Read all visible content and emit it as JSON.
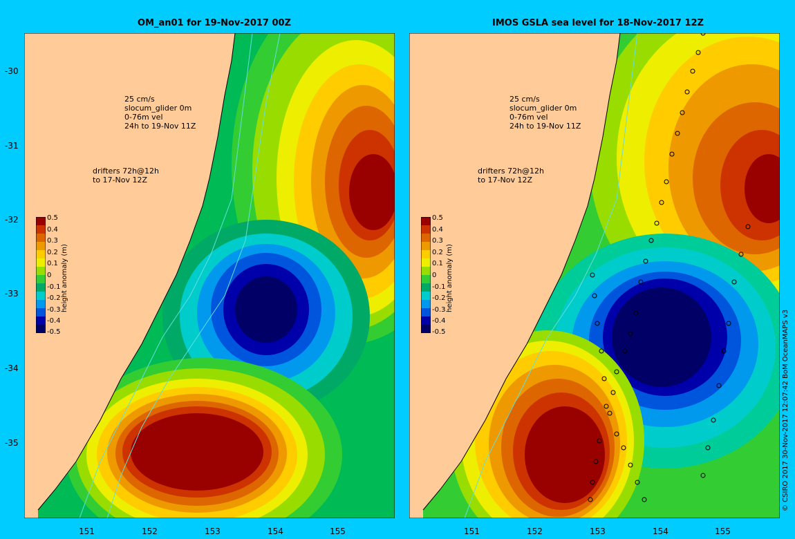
{
  "left_panel": {
    "title": "OM_an01 for 19-Nov-2017 00Z",
    "legend_vel_scale": "25 cm/s",
    "legend_glider": "slocum_glider 0m",
    "legend_vel_depth": "0-76m vel",
    "legend_vel_time": "24h to 19-Nov 11Z",
    "legend_drifters_1": "drifters 72h@12h",
    "legend_drifters_2": "to 17-Nov 12Z"
  },
  "right_panel": {
    "title": "IMOS GSLA sea level  for 18-Nov-2017 12Z",
    "legend_vel_scale": "25 cm/s",
    "legend_glider": "slocum_glider 0m",
    "legend_vel_depth": "0-76m vel",
    "legend_vel_time": "24h to 19-Nov 11Z",
    "legend_drifters_1": "drifters 72h@12h",
    "legend_drifters_2": "to 17-Nov 12Z"
  },
  "lat_labels": [
    "-30",
    "-31",
    "-32",
    "-33",
    "-34",
    "-35"
  ],
  "lon_labels": [
    "151",
    "152",
    "153",
    "154",
    "155"
  ],
  "colorbar": {
    "title": "height anomaly (m)",
    "ticks": [
      "0.5",
      "0.4",
      "0.3",
      "0.2",
      "0.1",
      "0",
      "-0.1",
      "-0.2",
      "-0.3",
      "-0.4",
      "-0.5"
    ],
    "colors": [
      "#990000",
      "#cc3300",
      "#dd6600",
      "#ee9900",
      "#ffcc00",
      "#eeee00",
      "#99dd00",
      "#33cc33",
      "#00aa66",
      "#00cccc",
      "#0099ee",
      "#0055dd",
      "#0000aa",
      "#000066"
    ]
  },
  "credit": "© CSIRO 2017   30-Nov-2017 12:07:42 BoM OceanMAPS v3",
  "colors": {
    "frame": "#00ccff",
    "land": "#ffcc99",
    "shelf": "#00cc66"
  }
}
